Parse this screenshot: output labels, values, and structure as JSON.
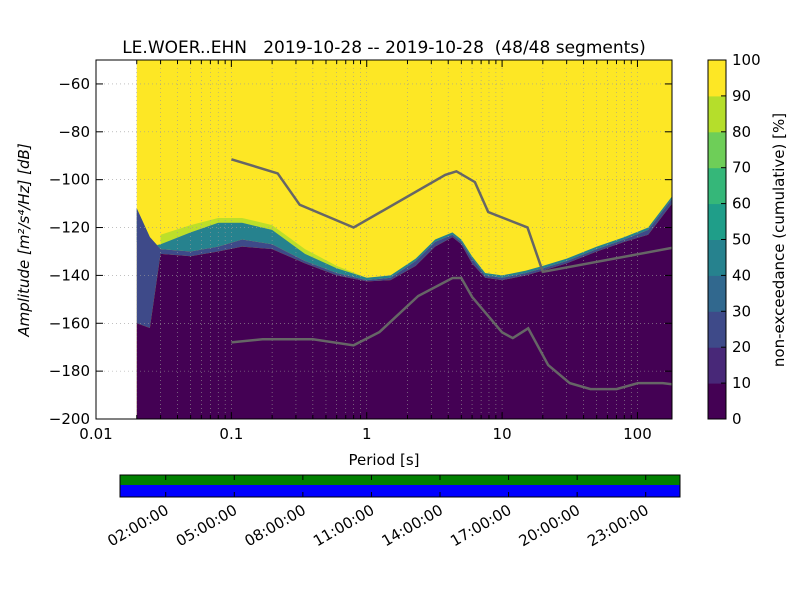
{
  "chart_data": {
    "type": "heatmap",
    "title": "LE.WOER..EHN   2019-10-28 -- 2019-10-28  (48/48 segments)",
    "xlabel": "Period [s]",
    "ylabel": "Amplitude [m²/s⁴/Hz] [dB]",
    "xscale": "log",
    "xlim": [
      0.01,
      180
    ],
    "ylim": [
      -200,
      -50
    ],
    "grid": true,
    "x_ticks": [
      0.01,
      0.1,
      1,
      10,
      100
    ],
    "x_tick_labels": [
      "0.01",
      "0.1",
      "1",
      "10",
      "100"
    ],
    "y_ticks": [
      -200,
      -180,
      -160,
      -140,
      -120,
      -100,
      -80,
      -60
    ],
    "y_tick_labels": [
      "−200",
      "−180",
      "−160",
      "−140",
      "−120",
      "−100",
      "−80",
      "−60"
    ],
    "colorbar": {
      "label": "non-exceedance (cumulative) [%]",
      "range": [
        0,
        100
      ],
      "ticks": [
        0,
        10,
        20,
        30,
        40,
        50,
        60,
        70,
        80,
        90,
        100
      ],
      "tick_labels": [
        "0",
        "10",
        "20",
        "30",
        "40",
        "50",
        "60",
        "70",
        "80",
        "90",
        "100"
      ],
      "colormap": [
        "#440154",
        "#482878",
        "#3e4a89",
        "#31688e",
        "#26828e",
        "#1f9e89",
        "#35b779",
        "#6ece58",
        "#b5de2b",
        "#fde725"
      ]
    },
    "data_start_period": 0.02,
    "psd_envelope": {
      "period": [
        0.02,
        0.025,
        0.03,
        0.05,
        0.08,
        0.12,
        0.2,
        0.35,
        0.6,
        1.0,
        1.5,
        2.3,
        3.2,
        4.3,
        5.0,
        6.0,
        7.5,
        10,
        15,
        20,
        30,
        50,
        80,
        120,
        180
      ],
      "low_db": [
        -112,
        -124,
        -129,
        -130,
        -128,
        -125,
        -127,
        -134,
        -139,
        -142,
        -141,
        -134,
        -126,
        -123,
        -126,
        -133,
        -140,
        -141,
        -139,
        -137,
        -134,
        -129,
        -125,
        -121,
        -108
      ],
      "high_db": [
        -160,
        -162,
        -131,
        -132,
        -130,
        -128,
        -129,
        -135,
        -140,
        -142.5,
        -142,
        -136,
        -128,
        -124,
        -127,
        -135,
        -141,
        -142,
        -140,
        -138,
        -135,
        -130,
        -126,
        -123,
        -110
      ],
      "cyan_band_top_db": [
        -126,
        -128,
        -127,
        -122,
        -118,
        -118,
        -121,
        -131,
        -137,
        -141,
        -140,
        -133,
        -125,
        -122,
        -125,
        -132,
        -139,
        -140,
        -138,
        -136,
        -133,
        -128,
        -124,
        -120,
        -107
      ]
    },
    "noise_models": [
      {
        "type": "NHNM",
        "color": "#666666",
        "period": [
          0.1,
          0.22,
          0.32,
          0.8,
          3.8,
          4.6,
          6.3,
          7.9,
          15.4,
          20,
          180
        ],
        "db": [
          -91.5,
          -97.4,
          -110.5,
          -120,
          -98,
          -96.5,
          -101,
          -113.5,
          -120,
          -138.5,
          -128.5
        ]
      },
      {
        "type": "NLNM",
        "color": "#666666",
        "period": [
          0.1,
          0.17,
          0.4,
          0.8,
          1.24,
          2.4,
          4.3,
          5.0,
          6.0,
          10,
          12,
          15.6,
          21.9,
          31.6,
          45,
          70,
          101,
          154,
          180
        ],
        "db": [
          -168,
          -166.7,
          -166.7,
          -169.2,
          -163.7,
          -148.6,
          -141.1,
          -141.1,
          -149,
          -163.8,
          -166.2,
          -162.1,
          -177.5,
          -185,
          -187.5,
          -187.5,
          -185,
          -185,
          -185.5
        ]
      }
    ],
    "time_axis": {
      "tick_labels": [
        "02:00:00",
        "05:00:00",
        "08:00:00",
        "11:00:00",
        "14:00:00",
        "17:00:00",
        "20:00:00",
        "23:00:00"
      ],
      "tick_hours": [
        2,
        5,
        8,
        11,
        14,
        17,
        20,
        23
      ],
      "range_hours": [
        0,
        24.5
      ],
      "data_availability_color": "#008000",
      "psd_used_color": "#0000ff"
    }
  }
}
